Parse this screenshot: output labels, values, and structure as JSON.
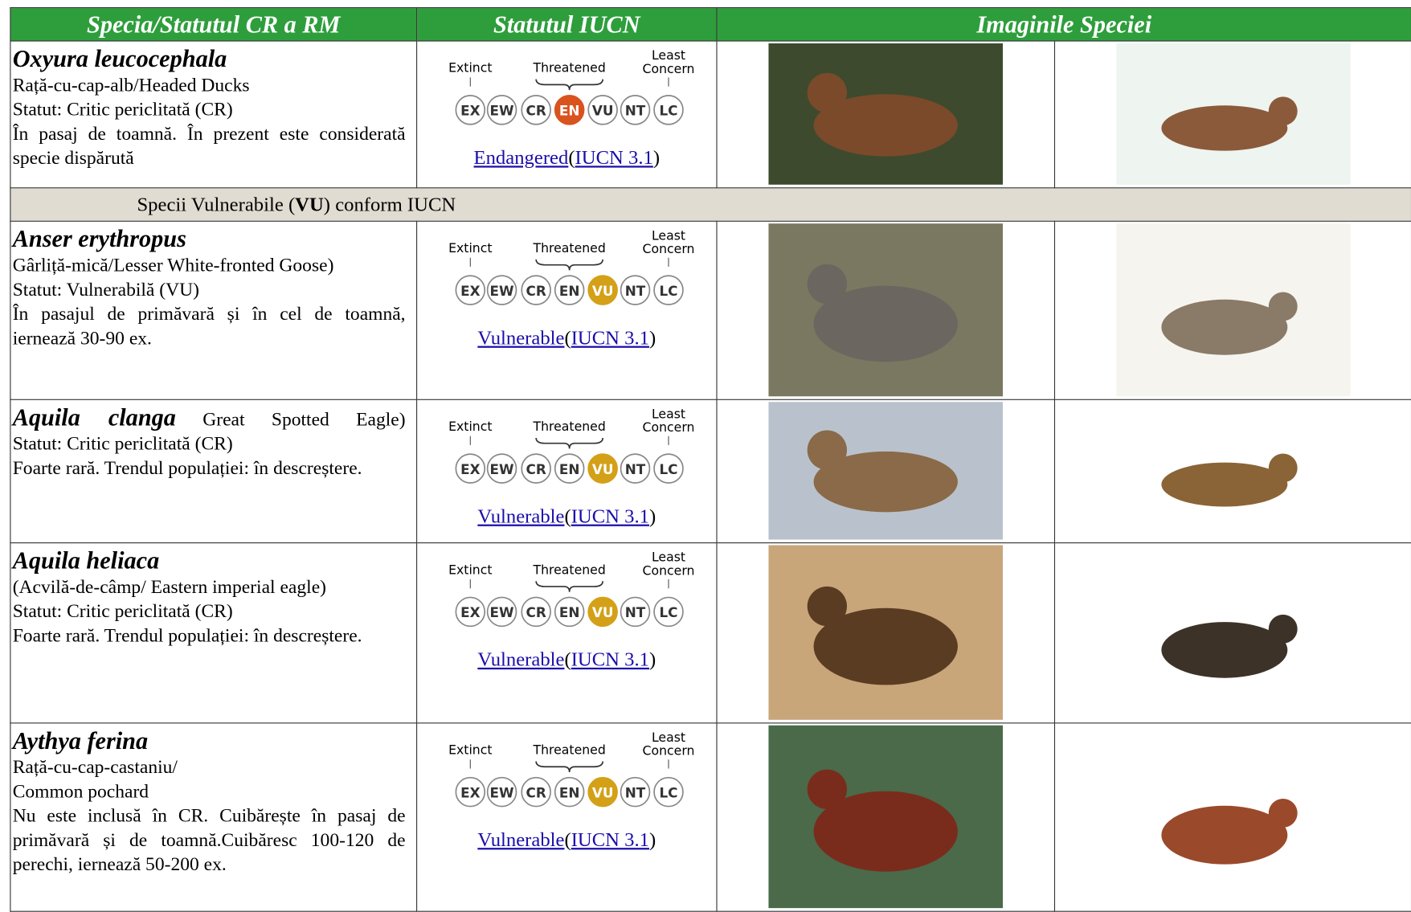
{
  "table": {
    "header": [
      "Specia/Statutul CR a RM",
      "Statutul IUCN",
      "Imaginile Speciei"
    ],
    "iucn_scale": {
      "extinct": "Extinct",
      "threatened": "Threatened",
      "least": "Least",
      "concern": "Concern",
      "codes": [
        "EX",
        "EW",
        "CR",
        "EN",
        "VU",
        "NT",
        "LC"
      ],
      "ref_open": "(",
      "ref": "IUCN 3.1",
      "ref_close": ")"
    },
    "rows": [
      {
        "name": "Oxyura leucocephala",
        "lines": [
          "Rață-cu-cap-alb/Headed Ducks",
          "Statut: Critic periclitată (CR)",
          "În pasaj de toamnă. În prezent este considerată specie dispărută"
        ],
        "status_index": 3,
        "status_color": "#d9531e",
        "status": "Endangered"
      },
      {
        "parts": [
          "Specii Vulnerabile (",
          "VU",
          ") conform IUCN"
        ]
      },
      {
        "name": "Anser erythropus",
        "lines": [
          "Gârliță-mică/Lesser White-fronted Goose)",
          "Statut: Vulnerabilă (VU)",
          "În pasajul de primăvară și în cel de toamnă, iernează 30-90 ex."
        ],
        "status_index": 4,
        "status_color": "#d4a017",
        "status": "Vulnerable"
      },
      {
        "name": "Aquila clanga",
        "name_suffix": "Great Spotted Eagle)",
        "lines": [
          "Statut: Critic periclitată (CR)",
          "Foarte rară. Trendul populației: în descreștere."
        ],
        "status_index": 4,
        "status_color": "#d4a017",
        "status": "Vulnerable"
      },
      {
        "name": "Aquila heliaca",
        "lines": [
          "(Acvilă-de-câmp/ Eastern imperial eagle)",
          "Statut: Critic periclitată (CR)",
          "Foarte rară. Trendul populației: în descreștere."
        ],
        "status_index": 4,
        "status_color": "#d4a017",
        "status": "Vulnerable"
      },
      {
        "name": "Aythya ferina",
        "lines": [
          "Rață-cu-cap-castaniu/",
          "Common pochard",
          "Nu este inclusă în CR. Cuibărește în pasaj de primăvară și de toamnă.Cuibăresc 100-120 de perechi, iernează 50-200 ex."
        ],
        "status_index": 4,
        "status_color": "#d4a017",
        "status": "Vulnerable"
      }
    ]
  }
}
